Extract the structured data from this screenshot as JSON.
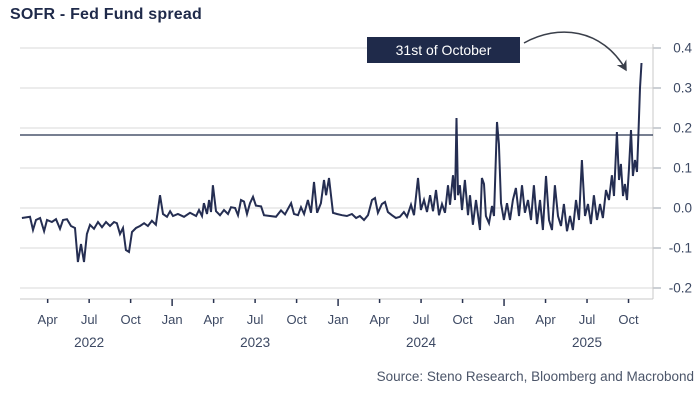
{
  "title": "SOFR - Fed Fund spread",
  "source": "Source: Steno Research, Bloomberg and Macrobond",
  "annotation": {
    "label": "31st of October"
  },
  "colors": {
    "background": "#ffffff",
    "title": "#1f2a4a",
    "series_line": "#252e52",
    "reference_line": "#26334f",
    "grid": "#d9d9d9",
    "axis_frame": "#c9c9c9",
    "x_tick": "#2a3350",
    "y_tick": "#9aa0ab",
    "tick_label": "#3d4963",
    "annotation_bg": "#1f2a4a",
    "annotation_text": "#ffffff",
    "arrow": "#3a3f4a",
    "source_text": "#4b5569"
  },
  "chart_data": {
    "type": "line",
    "title": "SOFR - Fed Fund spread",
    "source": "Source: Steno Research, Bloomberg and Macrobond",
    "grid": "horizontal",
    "legend": "none",
    "y_axis": {
      "side": "right",
      "range": [
        -0.2,
        0.4
      ],
      "ticks": [
        "0.4",
        "0.3",
        "0.2",
        "0.1",
        "0.0",
        "-0.1",
        "-0.2"
      ]
    },
    "x_axis": {
      "t_unit": "months since 2022-02-01",
      "range_t": [
        0,
        45
      ],
      "ticks": [
        {
          "t": 2,
          "label": "Apr"
        },
        {
          "t": 5,
          "label": "Jul"
        },
        {
          "t": 8,
          "label": "Oct"
        },
        {
          "t": 11,
          "label": "Jan",
          "major": true
        },
        {
          "t": 14,
          "label": "Apr"
        },
        {
          "t": 17,
          "label": "Jul"
        },
        {
          "t": 20,
          "label": "Oct"
        },
        {
          "t": 23,
          "label": "Jan",
          "major": true
        },
        {
          "t": 26,
          "label": "Apr"
        },
        {
          "t": 29,
          "label": "Jul"
        },
        {
          "t": 32,
          "label": "Oct"
        },
        {
          "t": 35,
          "label": "Jan",
          "major": true
        },
        {
          "t": 38,
          "label": "Apr"
        },
        {
          "t": 41,
          "label": "Jul"
        },
        {
          "t": 44,
          "label": "Oct"
        }
      ],
      "years": [
        {
          "t": 5,
          "label": "2022"
        },
        {
          "t": 17,
          "label": "2023"
        },
        {
          "t": 29,
          "label": "2024"
        },
        {
          "t": 41,
          "label": "2025"
        }
      ]
    },
    "reference_line": {
      "value": 0.1825
    },
    "annotation": {
      "label": "31st of October",
      "points_to": "final spike of the series on 31 Oct 2025",
      "peak_value": 0.36
    },
    "series": [
      {
        "name": "SOFR - Fed Fund spread",
        "unit": "percentage points",
        "points": [
          [
            0.14,
            -0.025
          ],
          [
            0.72,
            -0.022
          ],
          [
            0.94,
            -0.055
          ],
          [
            1.16,
            -0.03
          ],
          [
            1.45,
            -0.025
          ],
          [
            1.74,
            -0.058
          ],
          [
            1.95,
            -0.03
          ],
          [
            2.31,
            -0.035
          ],
          [
            2.6,
            -0.028
          ],
          [
            2.89,
            -0.052
          ],
          [
            3.11,
            -0.03
          ],
          [
            3.4,
            -0.028
          ],
          [
            3.69,
            -0.045
          ],
          [
            3.98,
            -0.05
          ],
          [
            4.19,
            -0.135
          ],
          [
            4.41,
            -0.09
          ],
          [
            4.63,
            -0.135
          ],
          [
            4.84,
            -0.065
          ],
          [
            5.06,
            -0.042
          ],
          [
            5.35,
            -0.052
          ],
          [
            5.64,
            -0.035
          ],
          [
            5.93,
            -0.048
          ],
          [
            6.22,
            -0.035
          ],
          [
            6.51,
            -0.045
          ],
          [
            6.8,
            -0.035
          ],
          [
            7.01,
            -0.038
          ],
          [
            7.23,
            -0.065
          ],
          [
            7.45,
            -0.05
          ],
          [
            7.66,
            -0.105
          ],
          [
            7.88,
            -0.11
          ],
          [
            8.1,
            -0.06
          ],
          [
            8.39,
            -0.05
          ],
          [
            8.68,
            -0.045
          ],
          [
            8.97,
            -0.038
          ],
          [
            9.25,
            -0.045
          ],
          [
            9.54,
            -0.032
          ],
          [
            9.83,
            -0.042
          ],
          [
            10.12,
            0.032
          ],
          [
            10.34,
            -0.015
          ],
          [
            10.63,
            -0.022
          ],
          [
            10.85,
            -0.008
          ],
          [
            11.06,
            -0.02
          ],
          [
            11.42,
            -0.015
          ],
          [
            11.86,
            -0.022
          ],
          [
            12.29,
            -0.012
          ],
          [
            12.73,
            -0.02
          ],
          [
            12.94,
            -0.005
          ],
          [
            13.16,
            -0.02
          ],
          [
            13.3,
            0.012
          ],
          [
            13.52,
            -0.015
          ],
          [
            13.67,
            0.02
          ],
          [
            13.81,
            -0.01
          ],
          [
            13.95,
            0.057
          ],
          [
            14.17,
            -0.008
          ],
          [
            14.46,
            -0.018
          ],
          [
            14.75,
            -0.005
          ],
          [
            15.04,
            -0.015
          ],
          [
            15.26,
            0.002
          ],
          [
            15.55,
            0
          ],
          [
            15.76,
            -0.018
          ],
          [
            15.98,
            0.02
          ],
          [
            16.2,
            0.016
          ],
          [
            16.41,
            -0.015
          ],
          [
            16.63,
            0.012
          ],
          [
            16.85,
            0.028
          ],
          [
            17.06,
            0.006
          ],
          [
            17.43,
            0.004
          ],
          [
            17.64,
            -0.018
          ],
          [
            18.08,
            -0.02
          ],
          [
            18.51,
            -0.022
          ],
          [
            18.87,
            -0.006
          ],
          [
            19.16,
            -0.016
          ],
          [
            19.38,
            -0.002
          ],
          [
            19.6,
            0.012
          ],
          [
            19.81,
            -0.015
          ],
          [
            20.1,
            -0.018
          ],
          [
            20.32,
            0.002
          ],
          [
            20.54,
            -0.015
          ],
          [
            20.82,
            0.02
          ],
          [
            21.04,
            -0.012
          ],
          [
            21.26,
            0.065
          ],
          [
            21.48,
            -0.012
          ],
          [
            21.76,
            0.012
          ],
          [
            21.98,
            0.07
          ],
          [
            22.13,
            0.032
          ],
          [
            22.34,
            0.075
          ],
          [
            22.63,
            -0.012
          ],
          [
            22.92,
            -0.015
          ],
          [
            23.28,
            -0.018
          ],
          [
            23.64,
            -0.02
          ],
          [
            24,
            -0.015
          ],
          [
            24.3,
            -0.025
          ],
          [
            24.58,
            -0.02
          ],
          [
            24.87,
            -0.03
          ],
          [
            25.16,
            -0.018
          ],
          [
            25.45,
            0.02
          ],
          [
            25.67,
            0.025
          ],
          [
            25.88,
            -0.012
          ],
          [
            26.17,
            0.01
          ],
          [
            26.39,
            0.015
          ],
          [
            26.6,
            -0.01
          ],
          [
            26.89,
            -0.018
          ],
          [
            27.18,
            -0.025
          ],
          [
            27.47,
            -0.022
          ],
          [
            27.76,
            -0.01
          ],
          [
            27.98,
            -0.022
          ],
          [
            28.27,
            0.008
          ],
          [
            28.49,
            -0.018
          ],
          [
            28.78,
            0.075
          ],
          [
            28.99,
            -0.005
          ],
          [
            29.21,
            0.02
          ],
          [
            29.43,
            -0.01
          ],
          [
            29.65,
            0.032
          ],
          [
            29.86,
            -0.008
          ],
          [
            30.08,
            0.045
          ],
          [
            30.3,
            -0.018
          ],
          [
            30.51,
            0.01
          ],
          [
            30.73,
            -0.012
          ],
          [
            30.95,
            0.057
          ],
          [
            31.09,
            0.008
          ],
          [
            31.31,
            0.082
          ],
          [
            31.45,
            0.02
          ],
          [
            31.56,
            0.225
          ],
          [
            31.67,
            0.032
          ],
          [
            31.81,
            0.057
          ],
          [
            31.96,
            -0.005
          ],
          [
            32.17,
            0.07
          ],
          [
            32.39,
            -0.018
          ],
          [
            32.54,
            0.032
          ],
          [
            32.75,
            -0.042
          ],
          [
            32.97,
            0.02
          ],
          [
            33.26,
            -0.055
          ],
          [
            33.4,
            0.075
          ],
          [
            33.55,
            0.06
          ],
          [
            33.69,
            -0.02
          ],
          [
            33.91,
            -0.038
          ],
          [
            34.13,
            0.005
          ],
          [
            34.27,
            -0.02
          ],
          [
            34.49,
            0.215
          ],
          [
            34.63,
            0.16
          ],
          [
            34.78,
            0.012
          ],
          [
            34.99,
            -0.03
          ],
          [
            35.21,
            0.012
          ],
          [
            35.43,
            -0.03
          ],
          [
            35.64,
            0.02
          ],
          [
            35.86,
            0.05
          ],
          [
            36.08,
            -0.02
          ],
          [
            36.3,
            0.057
          ],
          [
            36.51,
            -0.012
          ],
          [
            36.73,
            0.02
          ],
          [
            36.95,
            -0.03
          ],
          [
            37.16,
            0.057
          ],
          [
            37.38,
            -0.04
          ],
          [
            37.6,
            0.02
          ],
          [
            37.81,
            -0.055
          ],
          [
            38.03,
            0.08
          ],
          [
            38.25,
            -0.03
          ],
          [
            38.47,
            -0.055
          ],
          [
            38.68,
            0.057
          ],
          [
            38.9,
            -0.02
          ],
          [
            39.12,
            -0.045
          ],
          [
            39.33,
            0.01
          ],
          [
            39.55,
            -0.058
          ],
          [
            39.77,
            -0.02
          ],
          [
            39.98,
            -0.055
          ],
          [
            40.2,
            0.02
          ],
          [
            40.42,
            -0.03
          ],
          [
            40.63,
            0.12
          ],
          [
            40.85,
            -0.02
          ],
          [
            41.07,
            0.01
          ],
          [
            41.28,
            -0.04
          ],
          [
            41.5,
            0.032
          ],
          [
            41.72,
            -0.03
          ],
          [
            41.94,
            0.01
          ],
          [
            42.15,
            -0.025
          ],
          [
            42.37,
            0.045
          ],
          [
            42.59,
            0.02
          ],
          [
            42.8,
            0.082
          ],
          [
            42.95,
            0.03
          ],
          [
            43.16,
            0.19
          ],
          [
            43.31,
            0.07
          ],
          [
            43.45,
            0.11
          ],
          [
            43.6,
            0.03
          ],
          [
            43.74,
            0.06
          ],
          [
            43.89,
            0.02
          ],
          [
            44.03,
            0.095
          ],
          [
            44.18,
            0.195
          ],
          [
            44.32,
            0.08
          ],
          [
            44.47,
            0.12
          ],
          [
            44.61,
            0.09
          ],
          [
            44.72,
            0.19
          ],
          [
            44.83,
            0.3
          ],
          [
            44.94,
            0.3625
          ]
        ]
      }
    ]
  }
}
